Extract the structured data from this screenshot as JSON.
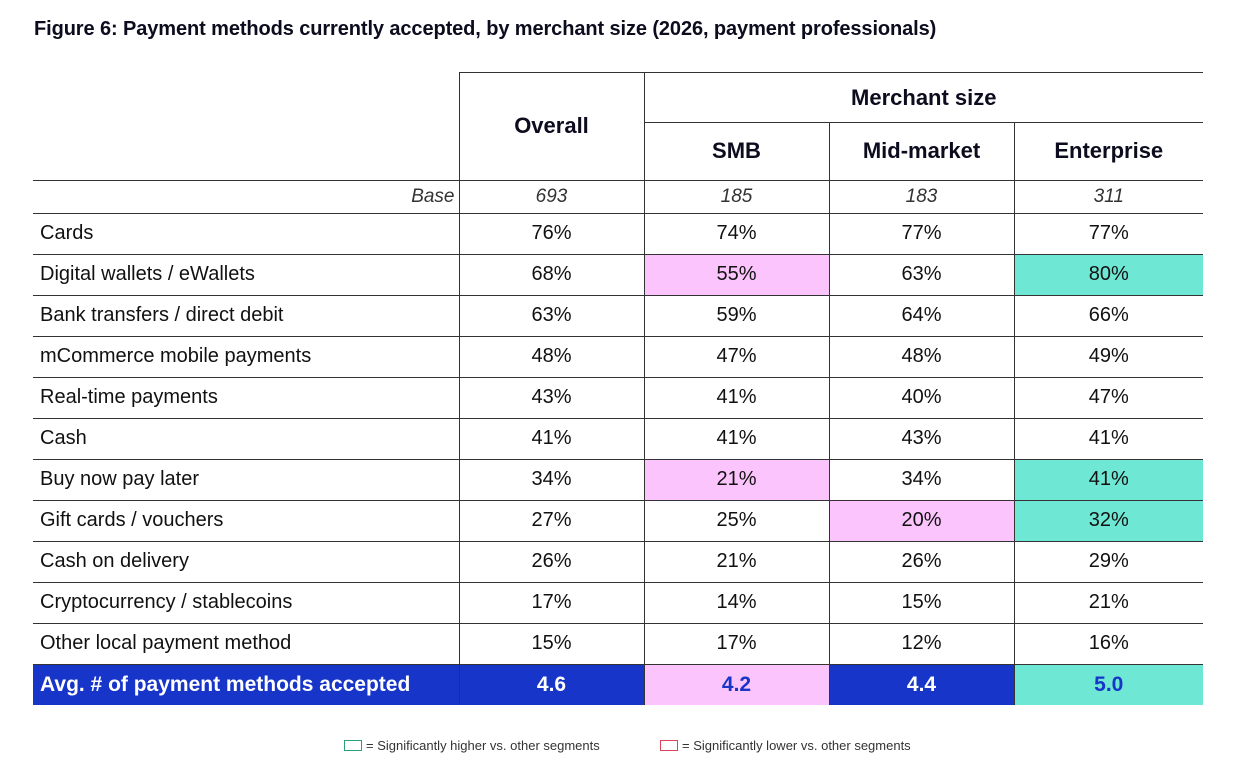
{
  "title": "Figure 6: Payment methods currently accepted, by merchant size (2026, payment professionals)",
  "headers": {
    "overall": "Overall",
    "merchant_size": "Merchant size",
    "smb": "SMB",
    "mid": "Mid-market",
    "enterprise": "Enterprise"
  },
  "base": {
    "label": "Base",
    "overall": "693",
    "smb": "185",
    "mid": "183",
    "enterprise": "311"
  },
  "rows": [
    {
      "label": "Cards",
      "overall": "76%",
      "smb": "74%",
      "mid": "77%",
      "enterprise": "77%",
      "smb_flag": "",
      "mid_flag": "",
      "ent_flag": ""
    },
    {
      "label": "Digital wallets / eWallets",
      "overall": "68%",
      "smb": "55%",
      "mid": "63%",
      "enterprise": "80%",
      "smb_flag": "lo",
      "mid_flag": "",
      "ent_flag": "hi"
    },
    {
      "label": "Bank transfers / direct debit",
      "overall": "63%",
      "smb": "59%",
      "mid": "64%",
      "enterprise": "66%",
      "smb_flag": "",
      "mid_flag": "",
      "ent_flag": ""
    },
    {
      "label": "mCommerce mobile payments",
      "overall": "48%",
      "smb": "47%",
      "mid": "48%",
      "enterprise": "49%",
      "smb_flag": "",
      "mid_flag": "",
      "ent_flag": ""
    },
    {
      "label": "Real-time payments",
      "overall": "43%",
      "smb": "41%",
      "mid": "40%",
      "enterprise": "47%",
      "smb_flag": "",
      "mid_flag": "",
      "ent_flag": ""
    },
    {
      "label": "Cash",
      "overall": "41%",
      "smb": "41%",
      "mid": "43%",
      "enterprise": "41%",
      "smb_flag": "",
      "mid_flag": "",
      "ent_flag": ""
    },
    {
      "label": "Buy now pay later",
      "overall": "34%",
      "smb": "21%",
      "mid": "34%",
      "enterprise": "41%",
      "smb_flag": "lo",
      "mid_flag": "",
      "ent_flag": "hi"
    },
    {
      "label": "Gift cards / vouchers",
      "overall": "27%",
      "smb": "25%",
      "mid": "20%",
      "enterprise": "32%",
      "smb_flag": "",
      "mid_flag": "lo",
      "ent_flag": "hi"
    },
    {
      "label": "Cash on delivery",
      "overall": "26%",
      "smb": "21%",
      "mid": "26%",
      "enterprise": "29%",
      "smb_flag": "",
      "mid_flag": "",
      "ent_flag": ""
    },
    {
      "label": "Cryptocurrency / stablecoins",
      "overall": "17%",
      "smb": "14%",
      "mid": "15%",
      "enterprise": "21%",
      "smb_flag": "",
      "mid_flag": "",
      "ent_flag": ""
    },
    {
      "label": "Other local payment method",
      "overall": "15%",
      "smb": "17%",
      "mid": "12%",
      "enterprise": "16%",
      "smb_flag": "",
      "mid_flag": "",
      "ent_flag": ""
    }
  ],
  "avg": {
    "label": "Avg. # of payment methods accepted",
    "overall": "4.6",
    "smb": "4.2",
    "mid": "4.4",
    "enterprise": "5.0"
  },
  "legend": {
    "higher": "= Significantly higher vs. other segments",
    "lower": "= Significantly lower vs. other segments"
  },
  "colors": {
    "higher": "#6ee8d4",
    "lower": "#fcc4fc",
    "avg_row": "#1735c8",
    "higher_border": "#2f9e7a",
    "lower_border": "#d9455a"
  },
  "chart_data": {
    "type": "table",
    "title": "Figure 6: Payment methods currently accepted, by merchant size (2026, payment professionals)",
    "columns": [
      "Overall",
      "SMB",
      "Mid-market",
      "Enterprise"
    ],
    "base": [
      693,
      185,
      183,
      311
    ],
    "rows": [
      {
        "label": "Cards",
        "values": [
          76,
          74,
          77,
          77
        ]
      },
      {
        "label": "Digital wallets / eWallets",
        "values": [
          68,
          55,
          63,
          80
        ]
      },
      {
        "label": "Bank transfers / direct debit",
        "values": [
          63,
          59,
          64,
          66
        ]
      },
      {
        "label": "mCommerce mobile payments",
        "values": [
          48,
          47,
          48,
          49
        ]
      },
      {
        "label": "Real-time payments",
        "values": [
          43,
          41,
          40,
          47
        ]
      },
      {
        "label": "Cash",
        "values": [
          41,
          41,
          43,
          41
        ]
      },
      {
        "label": "Buy now pay later",
        "values": [
          34,
          21,
          34,
          41
        ]
      },
      {
        "label": "Gift cards / vouchers",
        "values": [
          27,
          25,
          20,
          32
        ]
      },
      {
        "label": "Cash on delivery",
        "values": [
          26,
          21,
          26,
          29
        ]
      },
      {
        "label": "Cryptocurrency / stablecoins",
        "values": [
          17,
          14,
          15,
          21
        ]
      },
      {
        "label": "Other local payment method",
        "values": [
          15,
          17,
          12,
          16
        ]
      },
      {
        "label": "Avg. # of payment methods accepted",
        "values": [
          4.6,
          4.2,
          4.4,
          5.0
        ]
      }
    ]
  }
}
